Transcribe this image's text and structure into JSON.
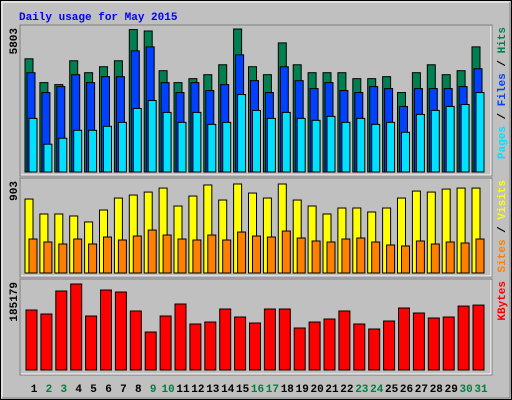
{
  "chart_data": [
    {
      "type": "bar",
      "title": "Daily usage for May 2015",
      "ylim": [
        0,
        5803
      ],
      "legend_separator": " / ",
      "series": [
        {
          "name": "Pages",
          "color": "#00e0ff",
          "values": [
            2176,
            1128,
            1370,
            1693,
            1693,
            1854,
            2015,
            2579,
            2902,
            2418,
            2015,
            2418,
            1934,
            2015,
            3143,
            2499,
            2176,
            2418,
            2176,
            2096,
            2257,
            2015,
            2176,
            1934,
            2015,
            1612,
            2337,
            2499,
            2660,
            2740,
            3224
          ]
        },
        {
          "name": "Files",
          "color": "#0040ff",
          "values": [
            4030,
            3224,
            3466,
            3949,
            3627,
            3869,
            3869,
            4917,
            5078,
            3627,
            3224,
            3627,
            3305,
            3546,
            4755,
            3708,
            3224,
            4272,
            3708,
            3385,
            3627,
            3305,
            3224,
            3466,
            3385,
            2660,
            3385,
            3385,
            3385,
            3466,
            4191
          ]
        },
        {
          "name": "Hits",
          "color": "#008050",
          "values": [
            4594,
            3627,
            3546,
            4514,
            4030,
            4272,
            4514,
            5780,
            5723,
            4111,
            3627,
            3788,
            3949,
            4352,
            5803,
            4272,
            3949,
            5239,
            4352,
            4030,
            4030,
            4030,
            3788,
            3788,
            3869,
            3224,
            4030,
            4352,
            3949,
            4111,
            5078
          ]
        }
      ]
    },
    {
      "type": "bar",
      "ylim": [
        0,
        903
      ],
      "legend_separator": " / ",
      "series": [
        {
          "name": "Sites",
          "color": "#ff8000",
          "values": [
            341,
            311,
            291,
            341,
            291,
            361,
            331,
            371,
            431,
            381,
            341,
            331,
            381,
            331,
            411,
            371,
            361,
            421,
            351,
            321,
            311,
            341,
            351,
            311,
            281,
            271,
            321,
            291,
            311,
            301,
            341
          ]
        },
        {
          "name": "Visits",
          "color": "#ffff00",
          "values": [
            742,
            592,
            592,
            572,
            512,
            632,
            752,
            782,
            812,
            852,
            672,
            772,
            883,
            732,
            893,
            802,
            752,
            893,
            732,
            672,
            592,
            652,
            652,
            612,
            652,
            752,
            822,
            812,
            842,
            852,
            852
          ]
        }
      ]
    },
    {
      "type": "bar",
      "ylim": [
        0,
        185179
      ],
      "categories": [
        "1",
        "2",
        "3",
        "4",
        "5",
        "6",
        "7",
        "8",
        "9",
        "10",
        "11",
        "12",
        "13",
        "14",
        "15",
        "16",
        "17",
        "18",
        "19",
        "20",
        "21",
        "22",
        "23",
        "24",
        "25",
        "26",
        "27",
        "28",
        "29",
        "30",
        "31"
      ],
      "category_colors": [
        "#000000",
        "#008040",
        "#008040",
        "#000000",
        "#000000",
        "#000000",
        "#000000",
        "#000000",
        "#008040",
        "#008040",
        "#000000",
        "#000000",
        "#000000",
        "#000000",
        "#000000",
        "#008040",
        "#008040",
        "#000000",
        "#000000",
        "#000000",
        "#000000",
        "#000000",
        "#008040",
        "#008040",
        "#000000",
        "#000000",
        "#000000",
        "#000000",
        "#000000",
        "#008040",
        "#008040"
      ],
      "series": [
        {
          "name": "KBytes",
          "color": "#ff0000",
          "values": [
            129180,
            120570,
            170080,
            185179,
            116260,
            172240,
            167930,
            127030,
            81810,
            116260,
            142100,
            99040,
            103350,
            131330,
            114110,
            101200,
            131330,
            131330,
            90430,
            103350,
            109800,
            127030,
            99040,
            88270,
            105500,
            133480,
            122720,
            111960,
            114110,
            137640,
            139790
          ]
        }
      ]
    }
  ]
}
